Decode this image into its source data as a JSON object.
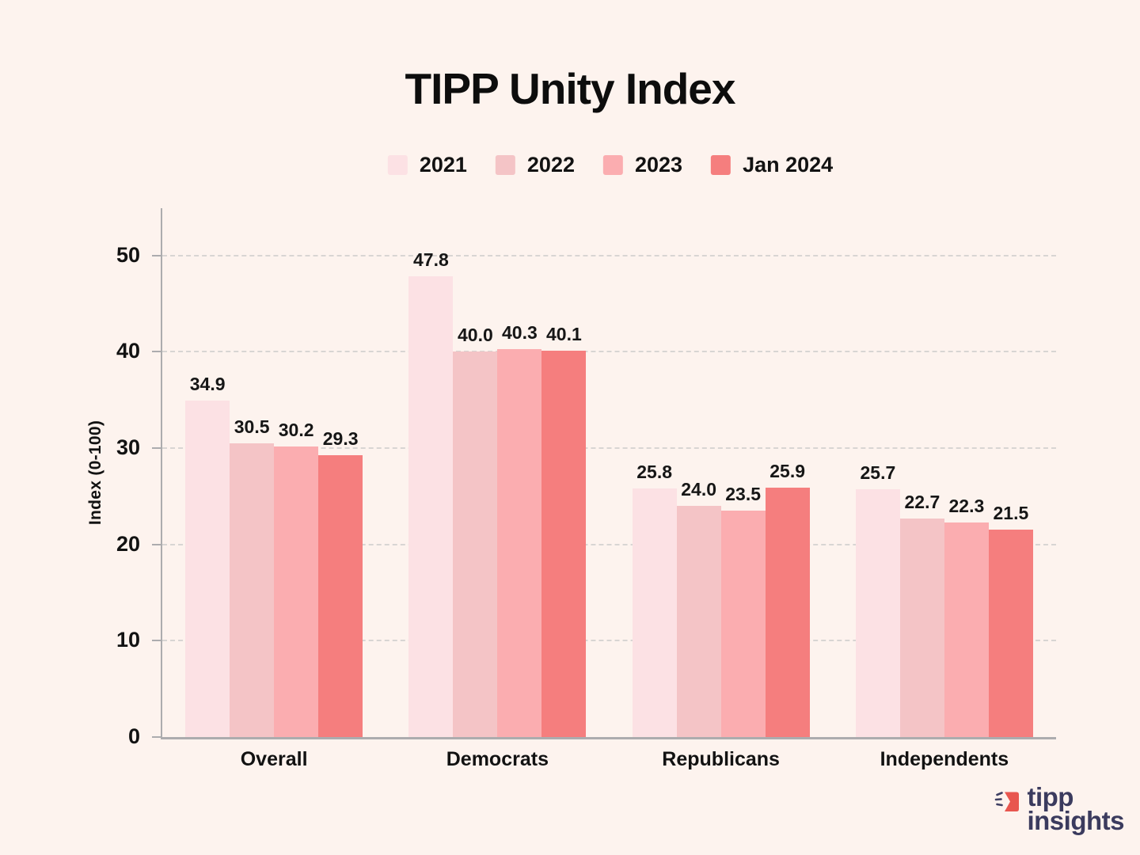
{
  "title": "TIPP Unity Index",
  "ylabel": "Index (0-100)",
  "chart_data": {
    "type": "bar",
    "title": "TIPP Unity Index",
    "ylabel": "Index (0-100)",
    "categories": [
      "Overall",
      "Democrats",
      "Republicans",
      "Independents"
    ],
    "series": [
      {
        "name": "2021",
        "color": "#fce1e4",
        "values": [
          34.9,
          47.8,
          25.8,
          25.7
        ]
      },
      {
        "name": "2022",
        "color": "#f4c4c6",
        "values": [
          30.5,
          40.0,
          24.0,
          22.7
        ]
      },
      {
        "name": "2023",
        "color": "#fbadb0",
        "values": [
          30.2,
          40.3,
          23.5,
          22.3
        ]
      },
      {
        "name": "Jan 2024",
        "color": "#f57e7e",
        "values": [
          29.3,
          40.1,
          25.9,
          21.5
        ]
      }
    ],
    "ylim": [
      0,
      54.9
    ],
    "yticks": [
      0,
      10,
      20,
      30,
      40,
      50
    ],
    "grid": "horizontal-dashed",
    "legend_position": "top-center",
    "value_labels": true,
    "value_label_format": "one-decimal"
  },
  "colors": {
    "background": "#fdf3ee",
    "axis": "#acacae",
    "gridline": "#d8d5d3",
    "text": "#121212",
    "logo_navy": "#3b3b5e",
    "logo_red": "#e8564f"
  },
  "logo": {
    "line1": "tipp",
    "line2": "insights",
    "icon": "tipp-insights-icon"
  }
}
